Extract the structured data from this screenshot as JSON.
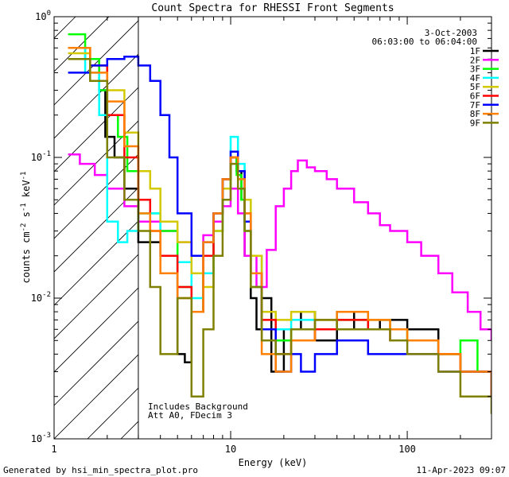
{
  "chart_data": {
    "type": "line",
    "title": "Count Spectra for RHESSI Front Segments",
    "xlabel": "Energy (keV)",
    "ylabel_parts": [
      "counts cm",
      "-2",
      " s",
      "-1",
      " keV",
      "-1"
    ],
    "x_scale": "log",
    "y_scale": "log",
    "xlim": [
      1,
      300
    ],
    "ylim": [
      0.001,
      1
    ],
    "x_ticks": [
      {
        "value": 1,
        "label": "1"
      },
      {
        "value": 10,
        "label": "10"
      },
      {
        "value": 100,
        "label": "100"
      }
    ],
    "y_ticks": [
      {
        "value": 1,
        "mantissa": "10",
        "exp": "0"
      },
      {
        "value": 0.1,
        "mantissa": "10",
        "exp": "-1"
      },
      {
        "value": 0.01,
        "mantissa": "10",
        "exp": "-2"
      },
      {
        "value": 0.001,
        "mantissa": "10",
        "exp": "-3"
      }
    ],
    "date": "3-Oct-2003",
    "time_range": "06:03:00 to 06:04:00",
    "annotations": [
      "Includes Background",
      "Att A0, FDecim 3"
    ],
    "shaded_region_keV": [
      1,
      3
    ],
    "threshold_line_keV": 3,
    "series": [
      {
        "name": "1F",
        "color": "#000000",
        "points": [
          [
            1.2,
            0.6
          ],
          [
            1.6,
            0.5
          ],
          [
            1.8,
            0.3
          ],
          [
            1.95,
            0.14
          ],
          [
            2.2,
            0.1
          ],
          [
            2.5,
            0.06
          ],
          [
            3,
            0.025
          ],
          [
            4,
            0.02
          ],
          [
            5,
            0.004
          ],
          [
            5.5,
            0.0035
          ],
          [
            6,
            0.008
          ],
          [
            7,
            0.02
          ],
          [
            8,
            0.04
          ],
          [
            9,
            0.07
          ],
          [
            10,
            0.1
          ],
          [
            10.8,
            0.08
          ],
          [
            11.5,
            0.05
          ],
          [
            12,
            0.02
          ],
          [
            13,
            0.01
          ],
          [
            14,
            0.006
          ],
          [
            15,
            0.01
          ],
          [
            17,
            0.003
          ],
          [
            20,
            0.006
          ],
          [
            25,
            0.008
          ],
          [
            30,
            0.005
          ],
          [
            40,
            0.008
          ],
          [
            50,
            0.006
          ],
          [
            70,
            0.007
          ],
          [
            100,
            0.006
          ],
          [
            150,
            0.004
          ],
          [
            200,
            0.003
          ],
          [
            300,
            0.002
          ]
        ]
      },
      {
        "name": "2F",
        "color": "#ff00ff",
        "points": [
          [
            1.2,
            0.105
          ],
          [
            1.4,
            0.09
          ],
          [
            1.7,
            0.075
          ],
          [
            2,
            0.06
          ],
          [
            2.5,
            0.045
          ],
          [
            3,
            0.035
          ],
          [
            4,
            0.03
          ],
          [
            5,
            0.025
          ],
          [
            6,
            0.02
          ],
          [
            7,
            0.028
          ],
          [
            8,
            0.035
          ],
          [
            9,
            0.045
          ],
          [
            10,
            0.06
          ],
          [
            11,
            0.04
          ],
          [
            12,
            0.02
          ],
          [
            14,
            0.012
          ],
          [
            16,
            0.022
          ],
          [
            18,
            0.045
          ],
          [
            20,
            0.06
          ],
          [
            22,
            0.08
          ],
          [
            24,
            0.095
          ],
          [
            27,
            0.085
          ],
          [
            30,
            0.08
          ],
          [
            35,
            0.07
          ],
          [
            40,
            0.06
          ],
          [
            50,
            0.048
          ],
          [
            60,
            0.04
          ],
          [
            70,
            0.033
          ],
          [
            80,
            0.03
          ],
          [
            100,
            0.025
          ],
          [
            120,
            0.02
          ],
          [
            150,
            0.015
          ],
          [
            180,
            0.011
          ],
          [
            220,
            0.008
          ],
          [
            260,
            0.006
          ],
          [
            300,
            0.005
          ]
        ]
      },
      {
        "name": "3F",
        "color": "#00ff00",
        "points": [
          [
            1.2,
            0.75
          ],
          [
            1.5,
            0.5
          ],
          [
            1.8,
            0.3
          ],
          [
            2,
            0.2
          ],
          [
            2.3,
            0.14
          ],
          [
            2.6,
            0.08
          ],
          [
            3,
            0.04
          ],
          [
            4,
            0.03
          ],
          [
            5,
            0.012
          ],
          [
            6,
            0.008
          ],
          [
            7,
            0.015
          ],
          [
            8,
            0.03
          ],
          [
            9,
            0.06
          ],
          [
            10,
            0.1
          ],
          [
            10.8,
            0.075
          ],
          [
            11.5,
            0.05
          ],
          [
            12,
            0.03
          ],
          [
            13,
            0.012
          ],
          [
            15,
            0.006
          ],
          [
            18,
            0.005
          ],
          [
            22,
            0.006
          ],
          [
            30,
            0.006
          ],
          [
            40,
            0.007
          ],
          [
            60,
            0.006
          ],
          [
            80,
            0.006
          ],
          [
            100,
            0.005
          ],
          [
            150,
            0.004
          ],
          [
            200,
            0.005
          ],
          [
            250,
            0.003
          ],
          [
            300,
            0.002
          ]
        ]
      },
      {
        "name": "4F",
        "color": "#00ffff",
        "points": [
          [
            1.2,
            0.6
          ],
          [
            1.5,
            0.4
          ],
          [
            1.8,
            0.2
          ],
          [
            2,
            0.035
          ],
          [
            2.3,
            0.025
          ],
          [
            2.6,
            0.03
          ],
          [
            3,
            0.04
          ],
          [
            4,
            0.02
          ],
          [
            5,
            0.018
          ],
          [
            6,
            0.01
          ],
          [
            7,
            0.015
          ],
          [
            8,
            0.03
          ],
          [
            9,
            0.06
          ],
          [
            10,
            0.14
          ],
          [
            11,
            0.09
          ],
          [
            12,
            0.05
          ],
          [
            13,
            0.02
          ],
          [
            15,
            0.008
          ],
          [
            18,
            0.006
          ],
          [
            22,
            0.007
          ],
          [
            30,
            0.006
          ],
          [
            40,
            0.008
          ],
          [
            60,
            0.007
          ],
          [
            80,
            0.006
          ],
          [
            100,
            0.005
          ],
          [
            150,
            0.004
          ],
          [
            200,
            0.003
          ],
          [
            300,
            0.002
          ]
        ]
      },
      {
        "name": "5F",
        "color": "#d4c800",
        "points": [
          [
            1.2,
            0.55
          ],
          [
            1.6,
            0.45
          ],
          [
            2,
            0.3
          ],
          [
            2.5,
            0.15
          ],
          [
            3,
            0.08
          ],
          [
            3.5,
            0.06
          ],
          [
            4,
            0.035
          ],
          [
            5,
            0.025
          ],
          [
            6,
            0.015
          ],
          [
            7,
            0.012
          ],
          [
            8,
            0.03
          ],
          [
            9,
            0.06
          ],
          [
            10,
            0.1
          ],
          [
            11,
            0.08
          ],
          [
            12,
            0.05
          ],
          [
            13,
            0.02
          ],
          [
            15,
            0.008
          ],
          [
            18,
            0.007
          ],
          [
            22,
            0.008
          ],
          [
            30,
            0.007
          ],
          [
            40,
            0.006
          ],
          [
            60,
            0.007
          ],
          [
            80,
            0.006
          ],
          [
            100,
            0.005
          ],
          [
            150,
            0.004
          ],
          [
            200,
            0.003
          ],
          [
            300,
            0.002
          ]
        ]
      },
      {
        "name": "6F",
        "color": "#ff0000",
        "points": [
          [
            1.2,
            0.6
          ],
          [
            1.6,
            0.45
          ],
          [
            2,
            0.2
          ],
          [
            2.5,
            0.1
          ],
          [
            3,
            0.05
          ],
          [
            3.5,
            0.03
          ],
          [
            4,
            0.02
          ],
          [
            5,
            0.012
          ],
          [
            6,
            0.008
          ],
          [
            7,
            0.02
          ],
          [
            8,
            0.04
          ],
          [
            9,
            0.07
          ],
          [
            10,
            0.1
          ],
          [
            11,
            0.08
          ],
          [
            12,
            0.04
          ],
          [
            13,
            0.015
          ],
          [
            15,
            0.007
          ],
          [
            18,
            0.004
          ],
          [
            22,
            0.005
          ],
          [
            30,
            0.006
          ],
          [
            40,
            0.007
          ],
          [
            60,
            0.006
          ],
          [
            80,
            0.005
          ],
          [
            100,
            0.005
          ],
          [
            150,
            0.004
          ],
          [
            200,
            0.003
          ],
          [
            300,
            0.002
          ]
        ]
      },
      {
        "name": "7F",
        "color": "#0000ff",
        "points": [
          [
            1.2,
            0.4
          ],
          [
            1.6,
            0.45
          ],
          [
            2,
            0.5
          ],
          [
            2.5,
            0.52
          ],
          [
            3,
            0.45
          ],
          [
            3.5,
            0.35
          ],
          [
            4,
            0.2
          ],
          [
            4.5,
            0.1
          ],
          [
            5,
            0.04
          ],
          [
            6,
            0.02
          ],
          [
            7,
            0.025
          ],
          [
            8,
            0.04
          ],
          [
            9,
            0.07
          ],
          [
            10,
            0.11
          ],
          [
            11,
            0.08
          ],
          [
            12,
            0.035
          ],
          [
            13,
            0.015
          ],
          [
            15,
            0.006
          ],
          [
            18,
            0.003
          ],
          [
            22,
            0.004
          ],
          [
            25,
            0.003
          ],
          [
            30,
            0.004
          ],
          [
            40,
            0.005
          ],
          [
            60,
            0.004
          ],
          [
            80,
            0.004
          ],
          [
            100,
            0.004
          ],
          [
            150,
            0.003
          ],
          [
            200,
            0.003
          ],
          [
            300,
            0.002
          ]
        ]
      },
      {
        "name": "8F",
        "color": "#ff8000",
        "points": [
          [
            1.2,
            0.6
          ],
          [
            1.6,
            0.4
          ],
          [
            2,
            0.25
          ],
          [
            2.5,
            0.12
          ],
          [
            3,
            0.04
          ],
          [
            3.5,
            0.03
          ],
          [
            4,
            0.015
          ],
          [
            5,
            0.01
          ],
          [
            6,
            0.008
          ],
          [
            7,
            0.025
          ],
          [
            8,
            0.04
          ],
          [
            9,
            0.07
          ],
          [
            10,
            0.1
          ],
          [
            11,
            0.07
          ],
          [
            12,
            0.04
          ],
          [
            13,
            0.015
          ],
          [
            15,
            0.004
          ],
          [
            18,
            0.003
          ],
          [
            22,
            0.005
          ],
          [
            30,
            0.007
          ],
          [
            40,
            0.008
          ],
          [
            60,
            0.007
          ],
          [
            80,
            0.006
          ],
          [
            100,
            0.005
          ],
          [
            150,
            0.004
          ],
          [
            200,
            0.003
          ],
          [
            300,
            0.002
          ]
        ]
      },
      {
        "name": "9F",
        "color": "#808000",
        "points": [
          [
            1.2,
            0.5
          ],
          [
            1.6,
            0.35
          ],
          [
            2,
            0.1
          ],
          [
            2.5,
            0.05
          ],
          [
            3,
            0.03
          ],
          [
            3.5,
            0.012
          ],
          [
            4,
            0.004
          ],
          [
            5,
            0.01
          ],
          [
            6,
            0.002
          ],
          [
            7,
            0.006
          ],
          [
            8,
            0.02
          ],
          [
            9,
            0.05
          ],
          [
            10,
            0.09
          ],
          [
            11,
            0.06
          ],
          [
            12,
            0.03
          ],
          [
            13,
            0.012
          ],
          [
            15,
            0.005
          ],
          [
            18,
            0.004
          ],
          [
            22,
            0.006
          ],
          [
            30,
            0.007
          ],
          [
            40,
            0.006
          ],
          [
            60,
            0.006
          ],
          [
            80,
            0.005
          ],
          [
            100,
            0.004
          ],
          [
            150,
            0.003
          ],
          [
            200,
            0.002
          ],
          [
            300,
            0.0015
          ]
        ]
      }
    ]
  },
  "footer": {
    "generated_by": "Generated by hsi_min_spectra_plot.pro",
    "timestamp": "11-Apr-2023 09:07"
  }
}
